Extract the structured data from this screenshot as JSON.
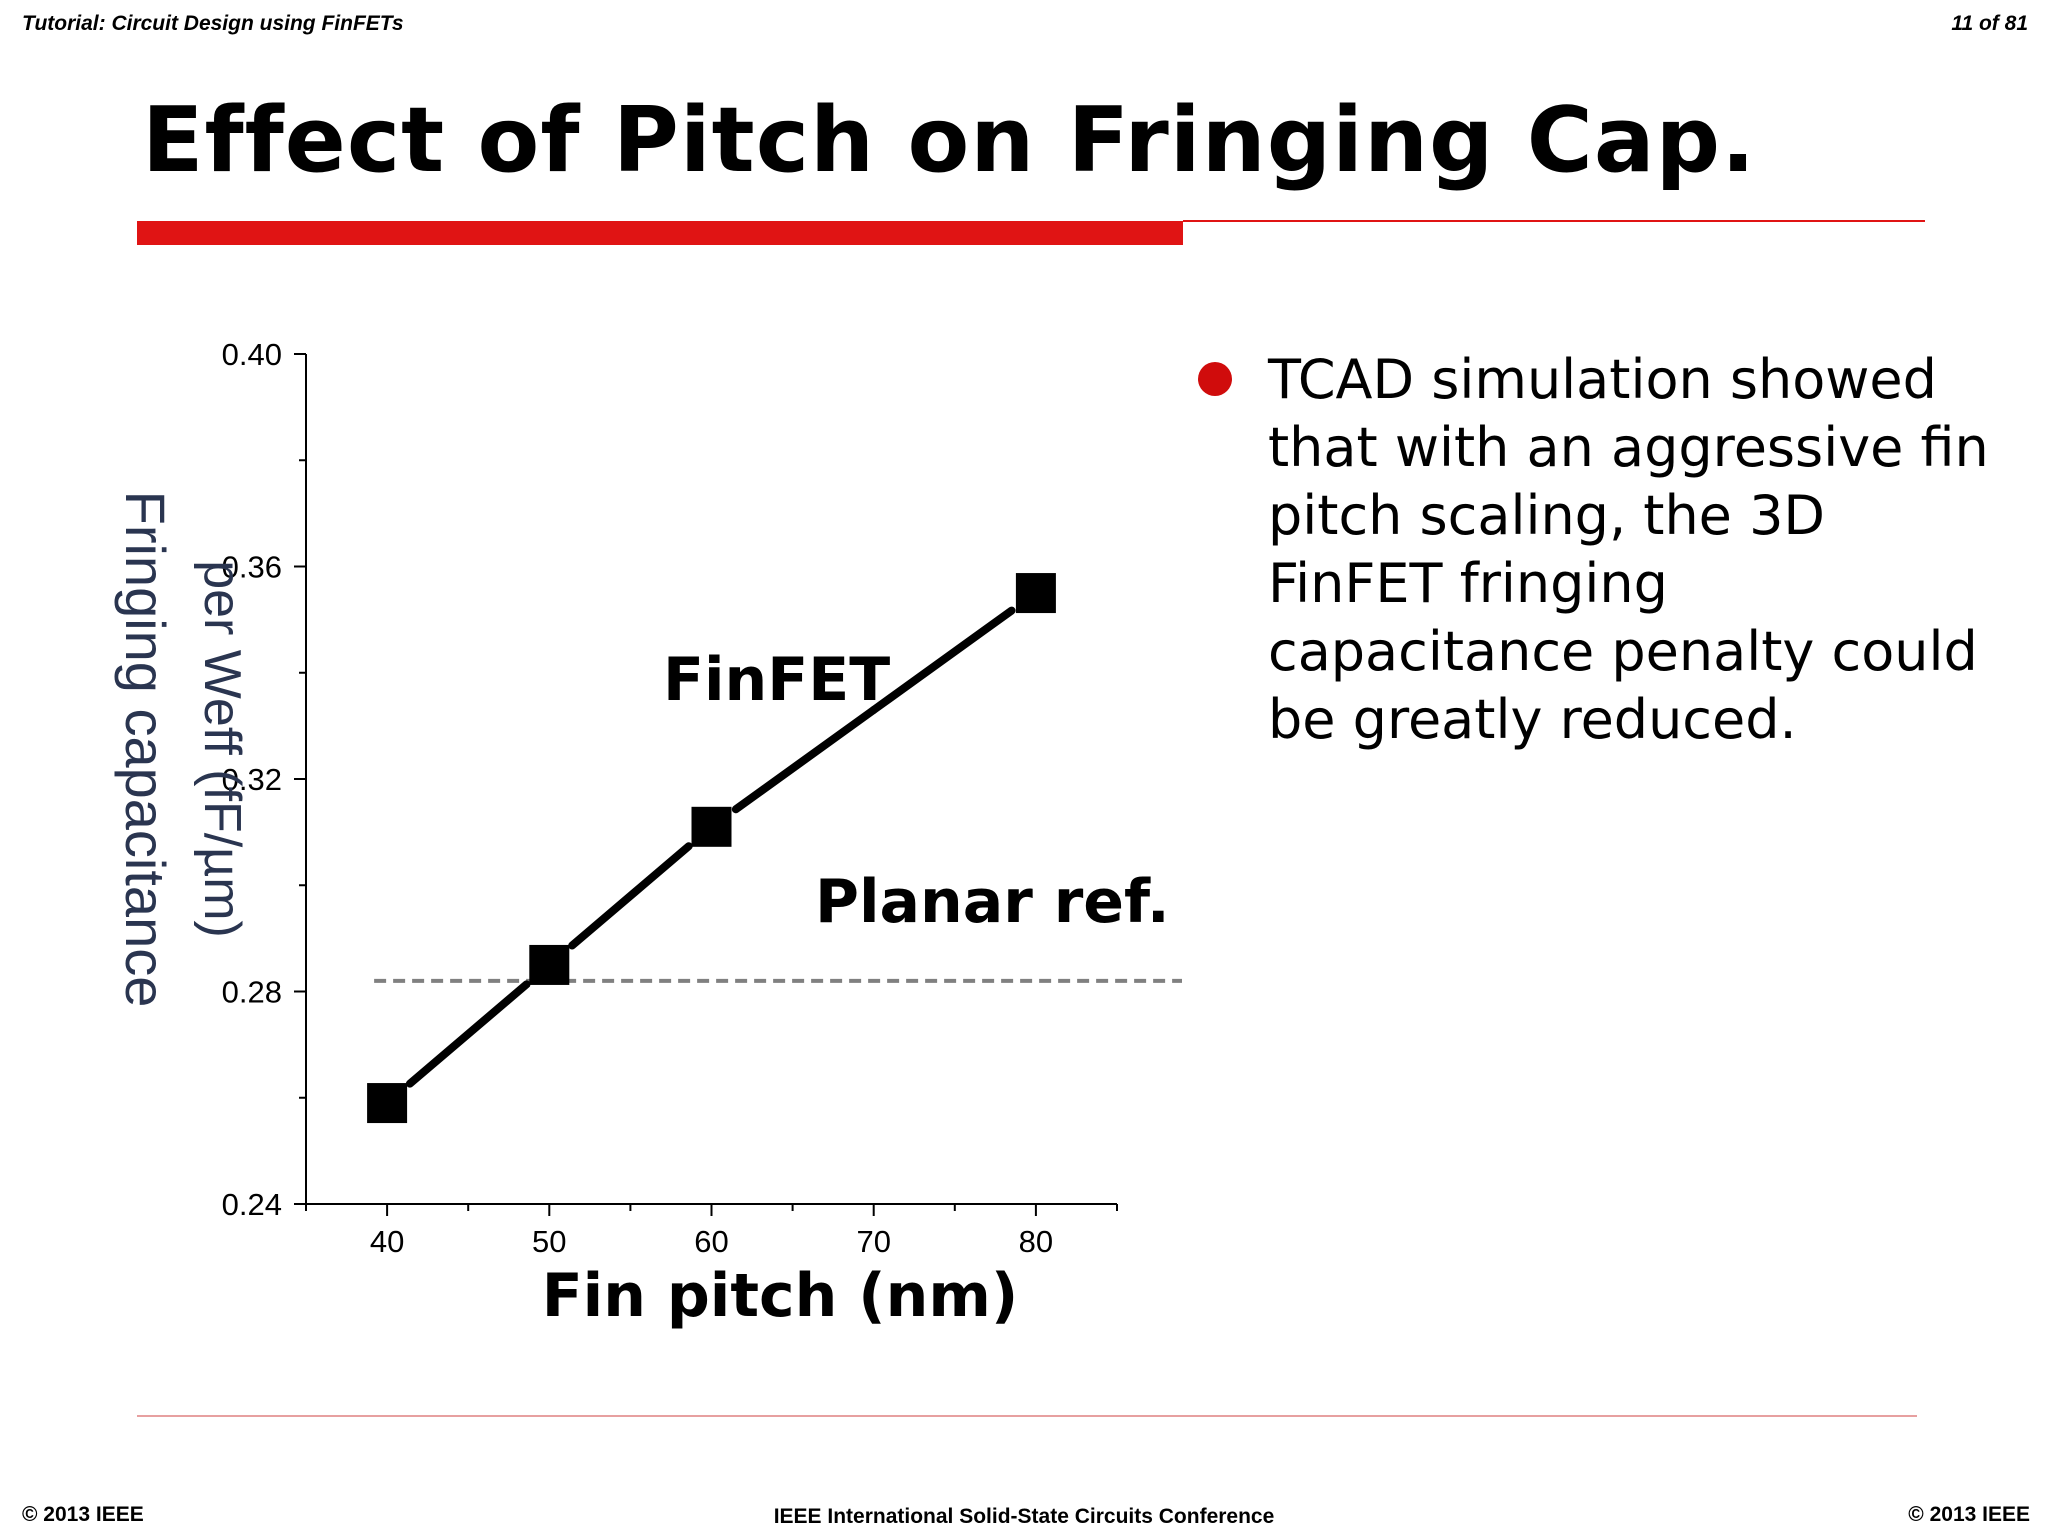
{
  "header": {
    "tutorial": "Tutorial: Circuit Design using FinFETs",
    "page": "11 of 81"
  },
  "slide": {
    "title": "Effect of Pitch on Fringing Cap.",
    "bullet_text": "TCAD simulation showed that with an aggressive fin pitch scaling, the 3D FinFET fringing capacitance penalty could be greatly reduced."
  },
  "footer": {
    "left": "© 2013 IEEE",
    "center": "IEEE International Solid-State Circuits Conference",
    "right": "© 2013 IEEE"
  },
  "colors": {
    "accent_red": "#e01414",
    "bullet_red": "#d00c0c",
    "series": "#000000",
    "reference": "#808080"
  },
  "chart_data": {
    "type": "line",
    "title": "",
    "xlabel": "Fin pitch (nm)",
    "ylabel": [
      "Fringing capacitance",
      "per Weff (fF/µm)"
    ],
    "xlim": [
      35,
      85
    ],
    "ylim": [
      0.24,
      0.4
    ],
    "xticks": [
      40,
      50,
      60,
      70,
      80
    ],
    "yticks": [
      0.24,
      0.28,
      0.32,
      0.36,
      0.4
    ],
    "ytick_labels": [
      "0.24",
      "0.28",
      "0.32",
      "0.36",
      "0.40"
    ],
    "grid": false,
    "series": [
      {
        "name": "FinFET",
        "marker": "square",
        "x": [
          40,
          50,
          60,
          70,
          80
        ],
        "y": [
          0.259,
          0.285,
          0.311,
          0.333,
          0.355
        ]
      }
    ],
    "reference_line": {
      "name": "Planar ref.",
      "y": 0.282,
      "style": "dashed"
    },
    "point_markers_x": [
      40,
      50,
      60,
      80
    ]
  }
}
